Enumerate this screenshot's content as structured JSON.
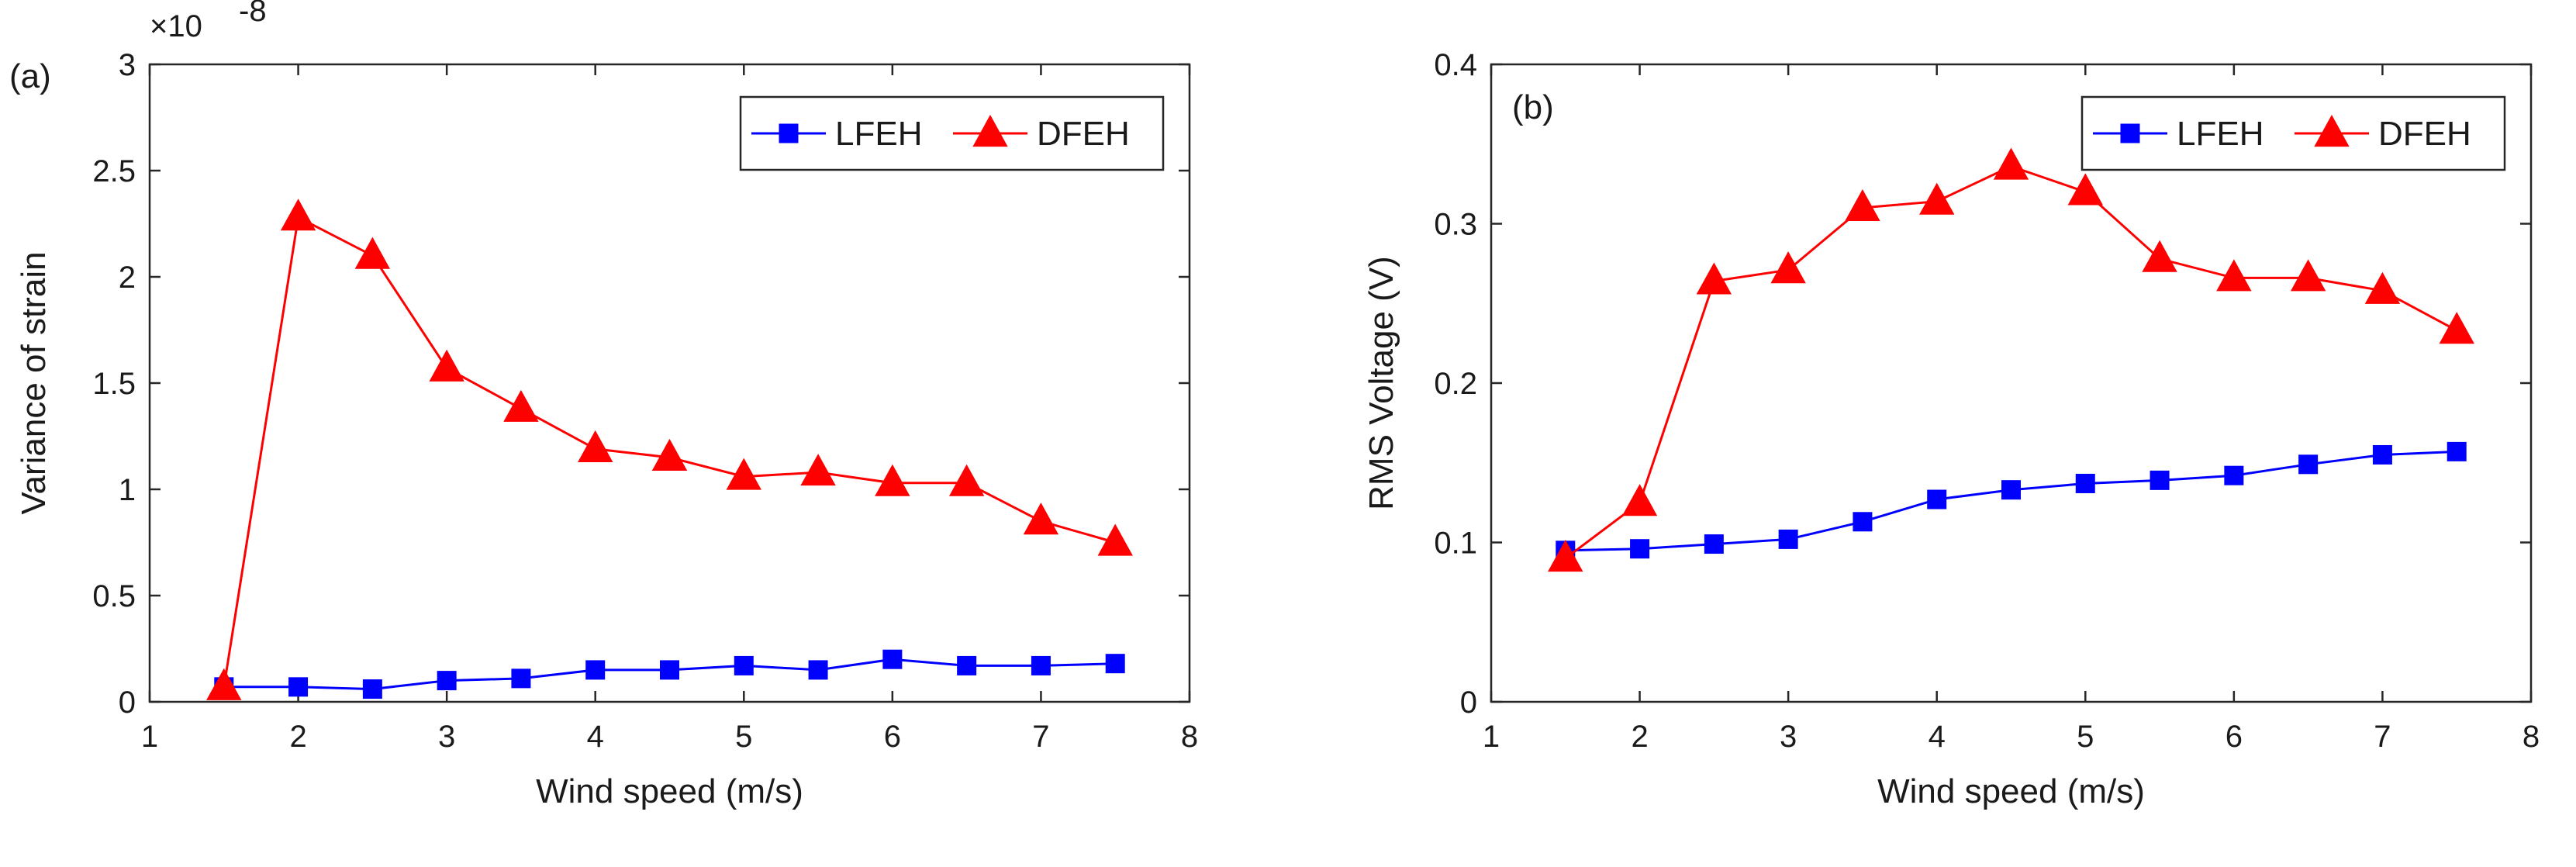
{
  "chart_data": [
    {
      "type": "line",
      "panel_label": "(a)",
      "title": "",
      "xlabel": "Wind speed (m/s)",
      "ylabel": "Variance of strain",
      "y_multiplier": "×10",
      "y_exponent": "-8",
      "xlim": [
        1,
        8
      ],
      "ylim": [
        0,
        3
      ],
      "xticks": [
        1,
        2,
        3,
        4,
        5,
        6,
        7,
        8
      ],
      "xtick_labels": [
        "1",
        "2",
        "3",
        "4",
        "5",
        "6",
        "7",
        "8"
      ],
      "yticks": [
        0,
        0.5,
        1,
        1.5,
        2,
        2.5,
        3
      ],
      "ytick_labels": [
        "0",
        "0.5",
        "1",
        "1.5",
        "2",
        "2.5",
        "3"
      ],
      "grid": false,
      "legend_position": "top-right",
      "x": [
        1.5,
        2,
        2.5,
        3,
        3.5,
        4,
        4.5,
        5,
        5.5,
        6,
        6.5,
        7,
        7.5
      ],
      "series": [
        {
          "name": "LFEH",
          "color": "#0000ff",
          "marker": "square",
          "values": [
            0.07,
            0.07,
            0.06,
            0.1,
            0.11,
            0.15,
            0.15,
            0.17,
            0.15,
            0.2,
            0.17,
            0.17,
            0.18
          ]
        },
        {
          "name": "DFEH",
          "color": "#ff0000",
          "marker": "triangle",
          "values": [
            0.07,
            2.28,
            2.1,
            1.57,
            1.38,
            1.19,
            1.15,
            1.06,
            1.08,
            1.03,
            1.03,
            0.85,
            0.75
          ]
        }
      ]
    },
    {
      "type": "line",
      "panel_label": "(b)",
      "title": "",
      "xlabel": "Wind speed (m/s)",
      "ylabel": "RMS Voltage (V)",
      "xlim": [
        1,
        8
      ],
      "ylim": [
        0,
        0.4
      ],
      "xticks": [
        1,
        2,
        3,
        4,
        5,
        6,
        7,
        8
      ],
      "xtick_labels": [
        "1",
        "2",
        "3",
        "4",
        "5",
        "6",
        "7",
        "8"
      ],
      "yticks": [
        0,
        0.1,
        0.2,
        0.3,
        0.4
      ],
      "ytick_labels": [
        "0",
        "0.1",
        "0.2",
        "0.3",
        "0.4"
      ],
      "grid": false,
      "legend_position": "top-right",
      "x": [
        1.5,
        2,
        2.5,
        3,
        3.5,
        4,
        4.5,
        5,
        5.5,
        6,
        6.5,
        7,
        7.5
      ],
      "series": [
        {
          "name": "LFEH",
          "color": "#0000ff",
          "marker": "square",
          "values": [
            0.095,
            0.096,
            0.099,
            0.102,
            0.113,
            0.127,
            0.133,
            0.137,
            0.139,
            0.142,
            0.149,
            0.155,
            0.157
          ]
        },
        {
          "name": "DFEH",
          "color": "#ff0000",
          "marker": "triangle",
          "values": [
            0.09,
            0.125,
            0.264,
            0.271,
            0.31,
            0.314,
            0.336,
            0.32,
            0.278,
            0.266,
            0.266,
            0.258,
            0.233
          ]
        }
      ]
    }
  ]
}
